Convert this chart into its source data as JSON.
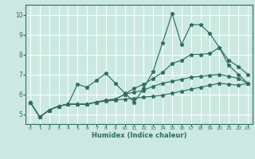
{
  "xlabel": "Humidex (Indice chaleur)",
  "xlim": [
    -0.5,
    23.5
  ],
  "ylim": [
    4.5,
    10.5
  ],
  "xticks": [
    0,
    1,
    2,
    3,
    4,
    5,
    6,
    7,
    8,
    9,
    10,
    11,
    12,
    13,
    14,
    15,
    16,
    17,
    18,
    19,
    20,
    21,
    22,
    23
  ],
  "yticks": [
    5,
    6,
    7,
    8,
    9,
    10
  ],
  "background_color": "#cce9e1",
  "grid_color": "#ffffff",
  "line_color": "#2d6e60",
  "lines": [
    {
      "x": [
        0,
        1,
        2,
        3,
        4,
        5,
        6,
        7,
        8,
        9,
        10,
        11,
        12,
        13,
        14,
        15,
        16,
        17,
        18,
        19,
        20,
        21,
        22,
        23
      ],
      "y": [
        5.6,
        4.85,
        5.2,
        5.4,
        5.5,
        6.5,
        6.35,
        6.7,
        7.05,
        6.55,
        6.05,
        5.6,
        6.3,
        7.15,
        8.6,
        10.05,
        8.5,
        9.5,
        9.5,
        9.05,
        8.35,
        7.45,
        7.0,
        6.55
      ]
    },
    {
      "x": [
        0,
        1,
        2,
        3,
        4,
        5,
        6,
        7,
        8,
        9,
        10,
        11,
        12,
        13,
        14,
        15,
        16,
        17,
        18,
        19,
        20,
        21,
        22,
        23
      ],
      "y": [
        5.6,
        4.85,
        5.2,
        5.4,
        5.5,
        5.5,
        5.5,
        5.6,
        5.7,
        5.75,
        6.0,
        6.3,
        6.5,
        6.8,
        7.1,
        7.55,
        7.7,
        8.0,
        8.0,
        8.05,
        8.35,
        7.7,
        7.4,
        7.0
      ]
    },
    {
      "x": [
        0,
        1,
        2,
        3,
        4,
        5,
        6,
        7,
        8,
        9,
        10,
        11,
        12,
        13,
        14,
        15,
        16,
        17,
        18,
        19,
        20,
        21,
        22,
        23
      ],
      "y": [
        5.6,
        4.85,
        5.2,
        5.4,
        5.5,
        5.5,
        5.5,
        5.6,
        5.7,
        5.75,
        6.0,
        6.1,
        6.2,
        6.4,
        6.55,
        6.65,
        6.75,
        6.85,
        6.9,
        6.95,
        7.0,
        6.9,
        6.8,
        6.55
      ]
    },
    {
      "x": [
        0,
        1,
        2,
        3,
        4,
        5,
        6,
        7,
        8,
        9,
        10,
        11,
        12,
        13,
        14,
        15,
        16,
        17,
        18,
        19,
        20,
        21,
        22,
        23
      ],
      "y": [
        5.6,
        4.85,
        5.2,
        5.4,
        5.5,
        5.5,
        5.5,
        5.6,
        5.65,
        5.7,
        5.75,
        5.8,
        5.85,
        5.9,
        5.95,
        6.05,
        6.15,
        6.25,
        6.35,
        6.45,
        6.55,
        6.5,
        6.45,
        6.55
      ]
    }
  ]
}
